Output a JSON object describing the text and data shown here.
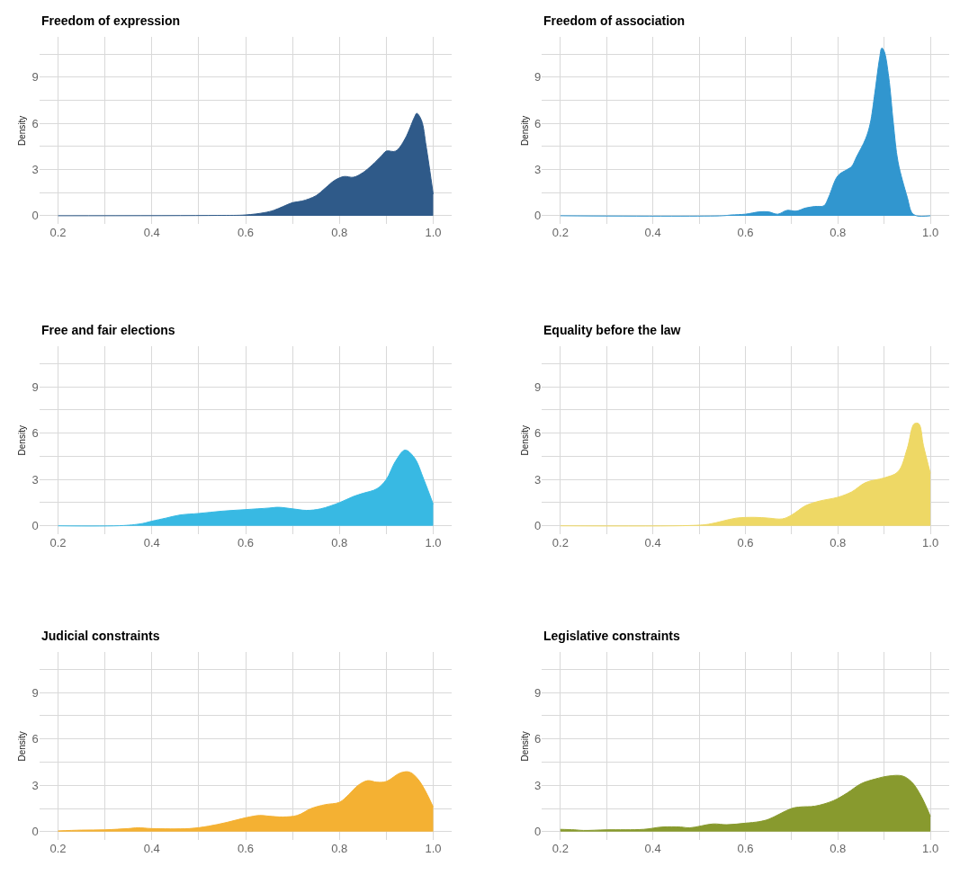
{
  "chart_data": [
    {
      "type": "area",
      "title": "Freedom of expression",
      "ylabel": "Density",
      "color": "#2f5a89",
      "grid": true,
      "xlim": [
        0.16,
        1.04
      ],
      "ylim": [
        -0.55,
        11.6
      ],
      "xticks": [
        {
          "value": 0.2,
          "label": "0.2"
        },
        {
          "value": 0.3,
          "label": null
        },
        {
          "value": 0.4,
          "label": "0.4"
        },
        {
          "value": 0.5,
          "label": null
        },
        {
          "value": 0.6,
          "label": "0.6"
        },
        {
          "value": 0.7,
          "label": null
        },
        {
          "value": 0.8,
          "label": "0.8"
        },
        {
          "value": 0.9,
          "label": null
        },
        {
          "value": 1.0,
          "label": "1.0"
        }
      ],
      "yticks": [
        0,
        {
          "value": 1.5,
          "label": null
        },
        3,
        {
          "value": 4.5,
          "label": null
        },
        6,
        {
          "value": 7.5,
          "label": null
        },
        9,
        {
          "value": 10.5,
          "label": null
        }
      ],
      "x": [
        0.2,
        0.54,
        0.6,
        0.64,
        0.66,
        0.68,
        0.7,
        0.72,
        0.75,
        0.77,
        0.79,
        0.81,
        0.83,
        0.85,
        0.87,
        0.89,
        0.9,
        0.92,
        0.94,
        0.96,
        0.965,
        0.975,
        0.985,
        1.0
      ],
      "values": [
        0,
        0.02,
        0.05,
        0.2,
        0.35,
        0.6,
        0.85,
        0.95,
        1.3,
        1.8,
        2.3,
        2.55,
        2.5,
        2.8,
        3.3,
        3.9,
        4.2,
        4.2,
        5.0,
        6.4,
        6.65,
        6.2,
        4.5,
        1.4
      ]
    },
    {
      "type": "area",
      "title": "Freedom of association",
      "ylabel": "Density",
      "color": "#3196cf",
      "grid": true,
      "xlim": [
        0.16,
        1.04
      ],
      "ylim": [
        -0.55,
        11.6
      ],
      "xticks": [
        {
          "value": 0.2,
          "label": "0.2"
        },
        {
          "value": 0.3,
          "label": null
        },
        {
          "value": 0.4,
          "label": "0.4"
        },
        {
          "value": 0.5,
          "label": null
        },
        {
          "value": 0.6,
          "label": "0.6"
        },
        {
          "value": 0.7,
          "label": null
        },
        {
          "value": 0.8,
          "label": "0.8"
        },
        {
          "value": 0.9,
          "label": null
        },
        {
          "value": 1.0,
          "label": "1.0"
        }
      ],
      "yticks": [
        0,
        {
          "value": 1.5,
          "label": null
        },
        3,
        {
          "value": 4.5,
          "label": null
        },
        6,
        {
          "value": 7.5,
          "label": null
        },
        9,
        {
          "value": 10.5,
          "label": null
        }
      ],
      "x": [
        0.2,
        0.55,
        0.57,
        0.6,
        0.63,
        0.65,
        0.67,
        0.69,
        0.71,
        0.73,
        0.75,
        0.77,
        0.78,
        0.8,
        0.82,
        0.83,
        0.84,
        0.86,
        0.87,
        0.88,
        0.89,
        0.895,
        0.9,
        0.91,
        0.92,
        0.93,
        0.95,
        0.96,
        0.97,
        1.0
      ],
      "values": [
        0,
        0,
        0.05,
        0.1,
        0.25,
        0.25,
        0.1,
        0.35,
        0.3,
        0.5,
        0.6,
        0.65,
        1.2,
        2.6,
        3.0,
        3.2,
        3.8,
        5.0,
        6.0,
        8.0,
        10.2,
        10.9,
        10.7,
        9.0,
        6.0,
        3.5,
        1.2,
        0.2,
        0,
        0
      ]
    },
    {
      "type": "area",
      "title": "Free and fair elections",
      "ylabel": "Density",
      "color": "#38b9e3",
      "grid": true,
      "xlim": [
        0.16,
        1.04
      ],
      "ylim": [
        -0.55,
        11.6
      ],
      "xticks": [
        {
          "value": 0.2,
          "label": "0.2"
        },
        {
          "value": 0.3,
          "label": null
        },
        {
          "value": 0.4,
          "label": "0.4"
        },
        {
          "value": 0.5,
          "label": null
        },
        {
          "value": 0.6,
          "label": "0.6"
        },
        {
          "value": 0.7,
          "label": null
        },
        {
          "value": 0.8,
          "label": "0.8"
        },
        {
          "value": 0.9,
          "label": null
        },
        {
          "value": 1.0,
          "label": "1.0"
        }
      ],
      "yticks": [
        0,
        {
          "value": 1.5,
          "label": null
        },
        3,
        {
          "value": 4.5,
          "label": null
        },
        6,
        {
          "value": 7.5,
          "label": null
        },
        9,
        {
          "value": 10.5,
          "label": null
        }
      ],
      "x": [
        0.2,
        0.34,
        0.38,
        0.4,
        0.43,
        0.46,
        0.5,
        0.55,
        0.6,
        0.65,
        0.67,
        0.7,
        0.73,
        0.76,
        0.8,
        0.83,
        0.85,
        0.88,
        0.9,
        0.92,
        0.94,
        0.96,
        0.98,
        1.0
      ],
      "values": [
        0,
        0.02,
        0.15,
        0.3,
        0.5,
        0.7,
        0.8,
        0.95,
        1.05,
        1.15,
        1.2,
        1.1,
        1.0,
        1.1,
        1.5,
        1.9,
        2.1,
        2.4,
        3.0,
        4.2,
        4.9,
        4.4,
        3.0,
        1.4
      ]
    },
    {
      "type": "area",
      "title": "Equality before the law",
      "ylabel": "Density",
      "color": "#eed865",
      "grid": true,
      "xlim": [
        0.16,
        1.04
      ],
      "ylim": [
        -0.55,
        11.6
      ],
      "xticks": [
        {
          "value": 0.2,
          "label": "0.2"
        },
        {
          "value": 0.3,
          "label": null
        },
        {
          "value": 0.4,
          "label": "0.4"
        },
        {
          "value": 0.5,
          "label": null
        },
        {
          "value": 0.6,
          "label": "0.6"
        },
        {
          "value": 0.7,
          "label": null
        },
        {
          "value": 0.8,
          "label": "0.8"
        },
        {
          "value": 0.9,
          "label": null
        },
        {
          "value": 1.0,
          "label": "1.0"
        }
      ],
      "yticks": [
        0,
        {
          "value": 1.5,
          "label": null
        },
        3,
        {
          "value": 4.5,
          "label": null
        },
        6,
        {
          "value": 7.5,
          "label": null
        },
        9,
        {
          "value": 10.5,
          "label": null
        }
      ],
      "x": [
        0.2,
        0.48,
        0.52,
        0.55,
        0.58,
        0.62,
        0.65,
        0.68,
        0.7,
        0.73,
        0.76,
        0.8,
        0.83,
        0.86,
        0.9,
        0.93,
        0.95,
        0.965,
        0.975,
        0.985,
        1.0
      ],
      "values": [
        0,
        0.02,
        0.1,
        0.3,
        0.5,
        0.55,
        0.5,
        0.45,
        0.7,
        1.3,
        1.6,
        1.85,
        2.2,
        2.8,
        3.1,
        3.5,
        5.0,
        6.6,
        6.6,
        5.2,
        3.4
      ]
    },
    {
      "type": "area",
      "title": "Judicial constraints",
      "ylabel": "Density",
      "color": "#f4b133",
      "grid": true,
      "xlim": [
        0.16,
        1.04
      ],
      "ylim": [
        -0.55,
        11.6
      ],
      "xticks": [
        {
          "value": 0.2,
          "label": "0.2"
        },
        {
          "value": 0.3,
          "label": null
        },
        {
          "value": 0.4,
          "label": "0.4"
        },
        {
          "value": 0.5,
          "label": null
        },
        {
          "value": 0.6,
          "label": "0.6"
        },
        {
          "value": 0.7,
          "label": null
        },
        {
          "value": 0.8,
          "label": "0.8"
        },
        {
          "value": 0.9,
          "label": null
        },
        {
          "value": 1.0,
          "label": "1.0"
        }
      ],
      "yticks": [
        0,
        {
          "value": 1.5,
          "label": null
        },
        3,
        {
          "value": 4.5,
          "label": null
        },
        6,
        {
          "value": 7.5,
          "label": null
        },
        9,
        {
          "value": 10.5,
          "label": null
        }
      ],
      "x": [
        0.2,
        0.25,
        0.3,
        0.35,
        0.37,
        0.4,
        0.48,
        0.52,
        0.56,
        0.6,
        0.63,
        0.65,
        0.68,
        0.71,
        0.74,
        0.77,
        0.8,
        0.82,
        0.84,
        0.86,
        0.88,
        0.9,
        0.93,
        0.95,
        0.97,
        1.0
      ],
      "values": [
        0.05,
        0.1,
        0.12,
        0.2,
        0.25,
        0.2,
        0.2,
        0.35,
        0.6,
        0.9,
        1.05,
        1.0,
        0.95,
        1.05,
        1.5,
        1.75,
        1.9,
        2.4,
        3.0,
        3.3,
        3.2,
        3.25,
        3.8,
        3.85,
        3.3,
        1.6
      ]
    },
    {
      "type": "area",
      "title": "Legislative constraints",
      "ylabel": "Density",
      "color": "#889a2e",
      "grid": true,
      "xlim": [
        0.16,
        1.04
      ],
      "ylim": [
        -0.55,
        11.6
      ],
      "xticks": [
        {
          "value": 0.2,
          "label": "0.2"
        },
        {
          "value": 0.3,
          "label": null
        },
        {
          "value": 0.4,
          "label": "0.4"
        },
        {
          "value": 0.5,
          "label": null
        },
        {
          "value": 0.6,
          "label": "0.6"
        },
        {
          "value": 0.7,
          "label": null
        },
        {
          "value": 0.8,
          "label": "0.8"
        },
        {
          "value": 0.9,
          "label": null
        },
        {
          "value": 1.0,
          "label": "1.0"
        }
      ],
      "yticks": [
        0,
        {
          "value": 1.5,
          "label": null
        },
        3,
        {
          "value": 4.5,
          "label": null
        },
        6,
        {
          "value": 7.5,
          "label": null
        },
        9,
        {
          "value": 10.5,
          "label": null
        }
      ],
      "x": [
        0.2,
        0.23,
        0.25,
        0.3,
        0.38,
        0.42,
        0.46,
        0.48,
        0.53,
        0.56,
        0.6,
        0.63,
        0.65,
        0.7,
        0.72,
        0.75,
        0.79,
        0.82,
        0.85,
        0.88,
        0.91,
        0.94,
        0.96,
        0.98,
        1.0
      ],
      "values": [
        0.15,
        0.12,
        0.08,
        0.12,
        0.15,
        0.3,
        0.3,
        0.25,
        0.5,
        0.45,
        0.55,
        0.65,
        0.8,
        1.5,
        1.6,
        1.65,
        2.0,
        2.5,
        3.1,
        3.4,
        3.6,
        3.6,
        3.2,
        2.3,
        1.0
      ]
    }
  ]
}
